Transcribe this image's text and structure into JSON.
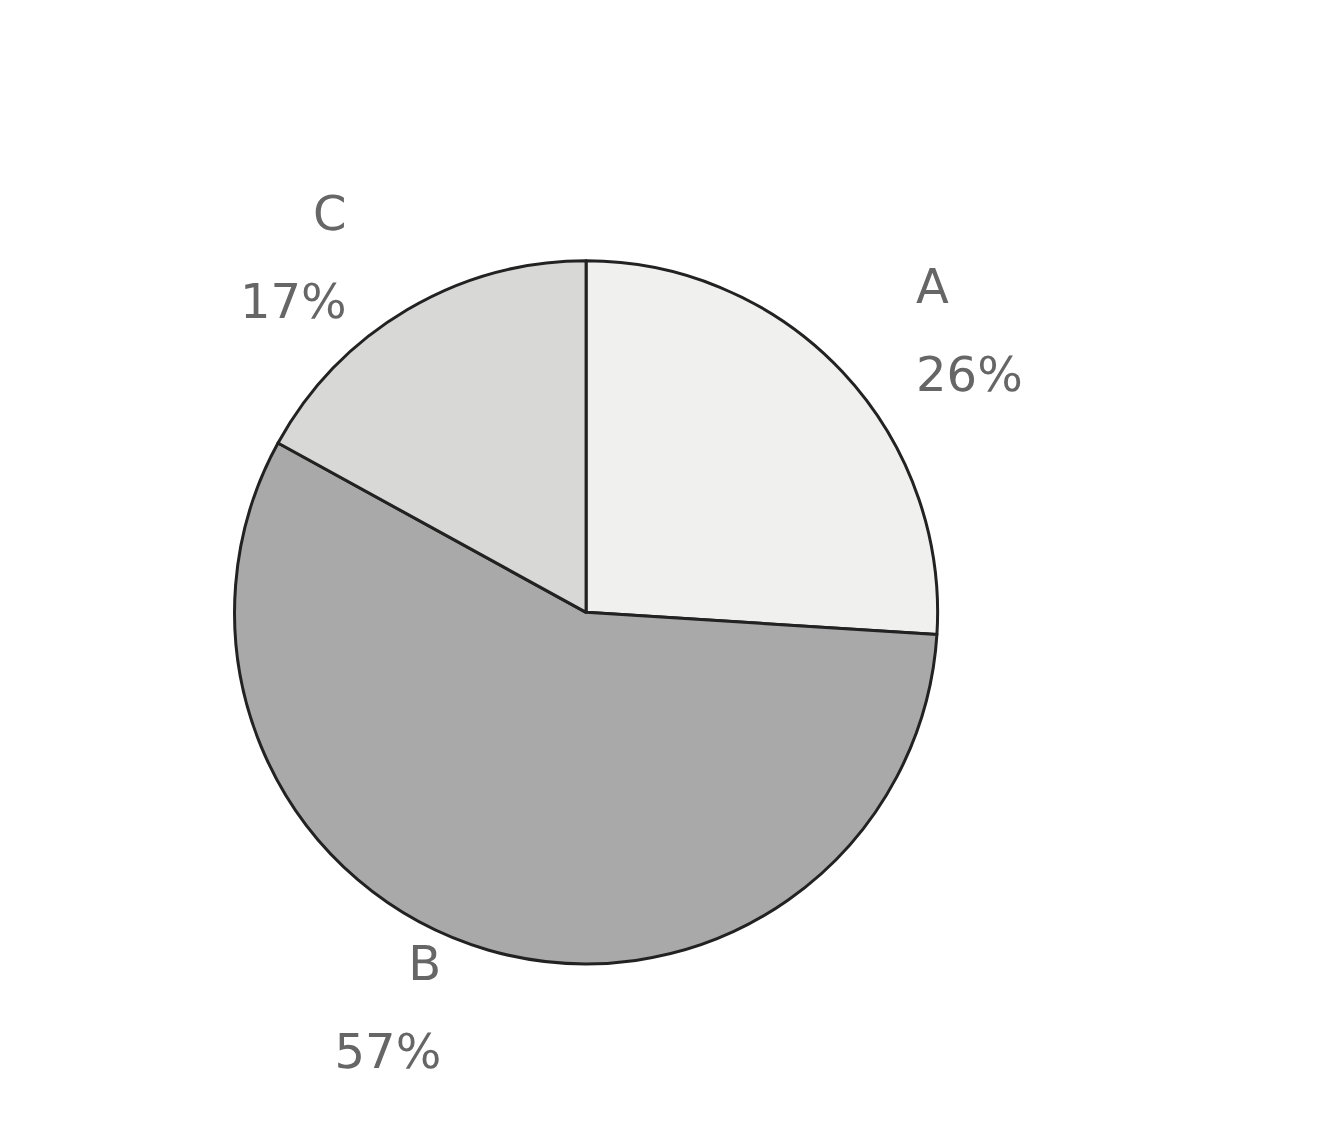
{
  "chart_data": {
    "type": "pie",
    "categories": [
      "A",
      "B",
      "C"
    ],
    "values": [
      26,
      57,
      17
    ],
    "colors": [
      "#f0f0ee",
      "#a9a9a9",
      "#d8d8d6"
    ],
    "value_labels": [
      "26%",
      "57%",
      "17%"
    ],
    "legend": false
  }
}
